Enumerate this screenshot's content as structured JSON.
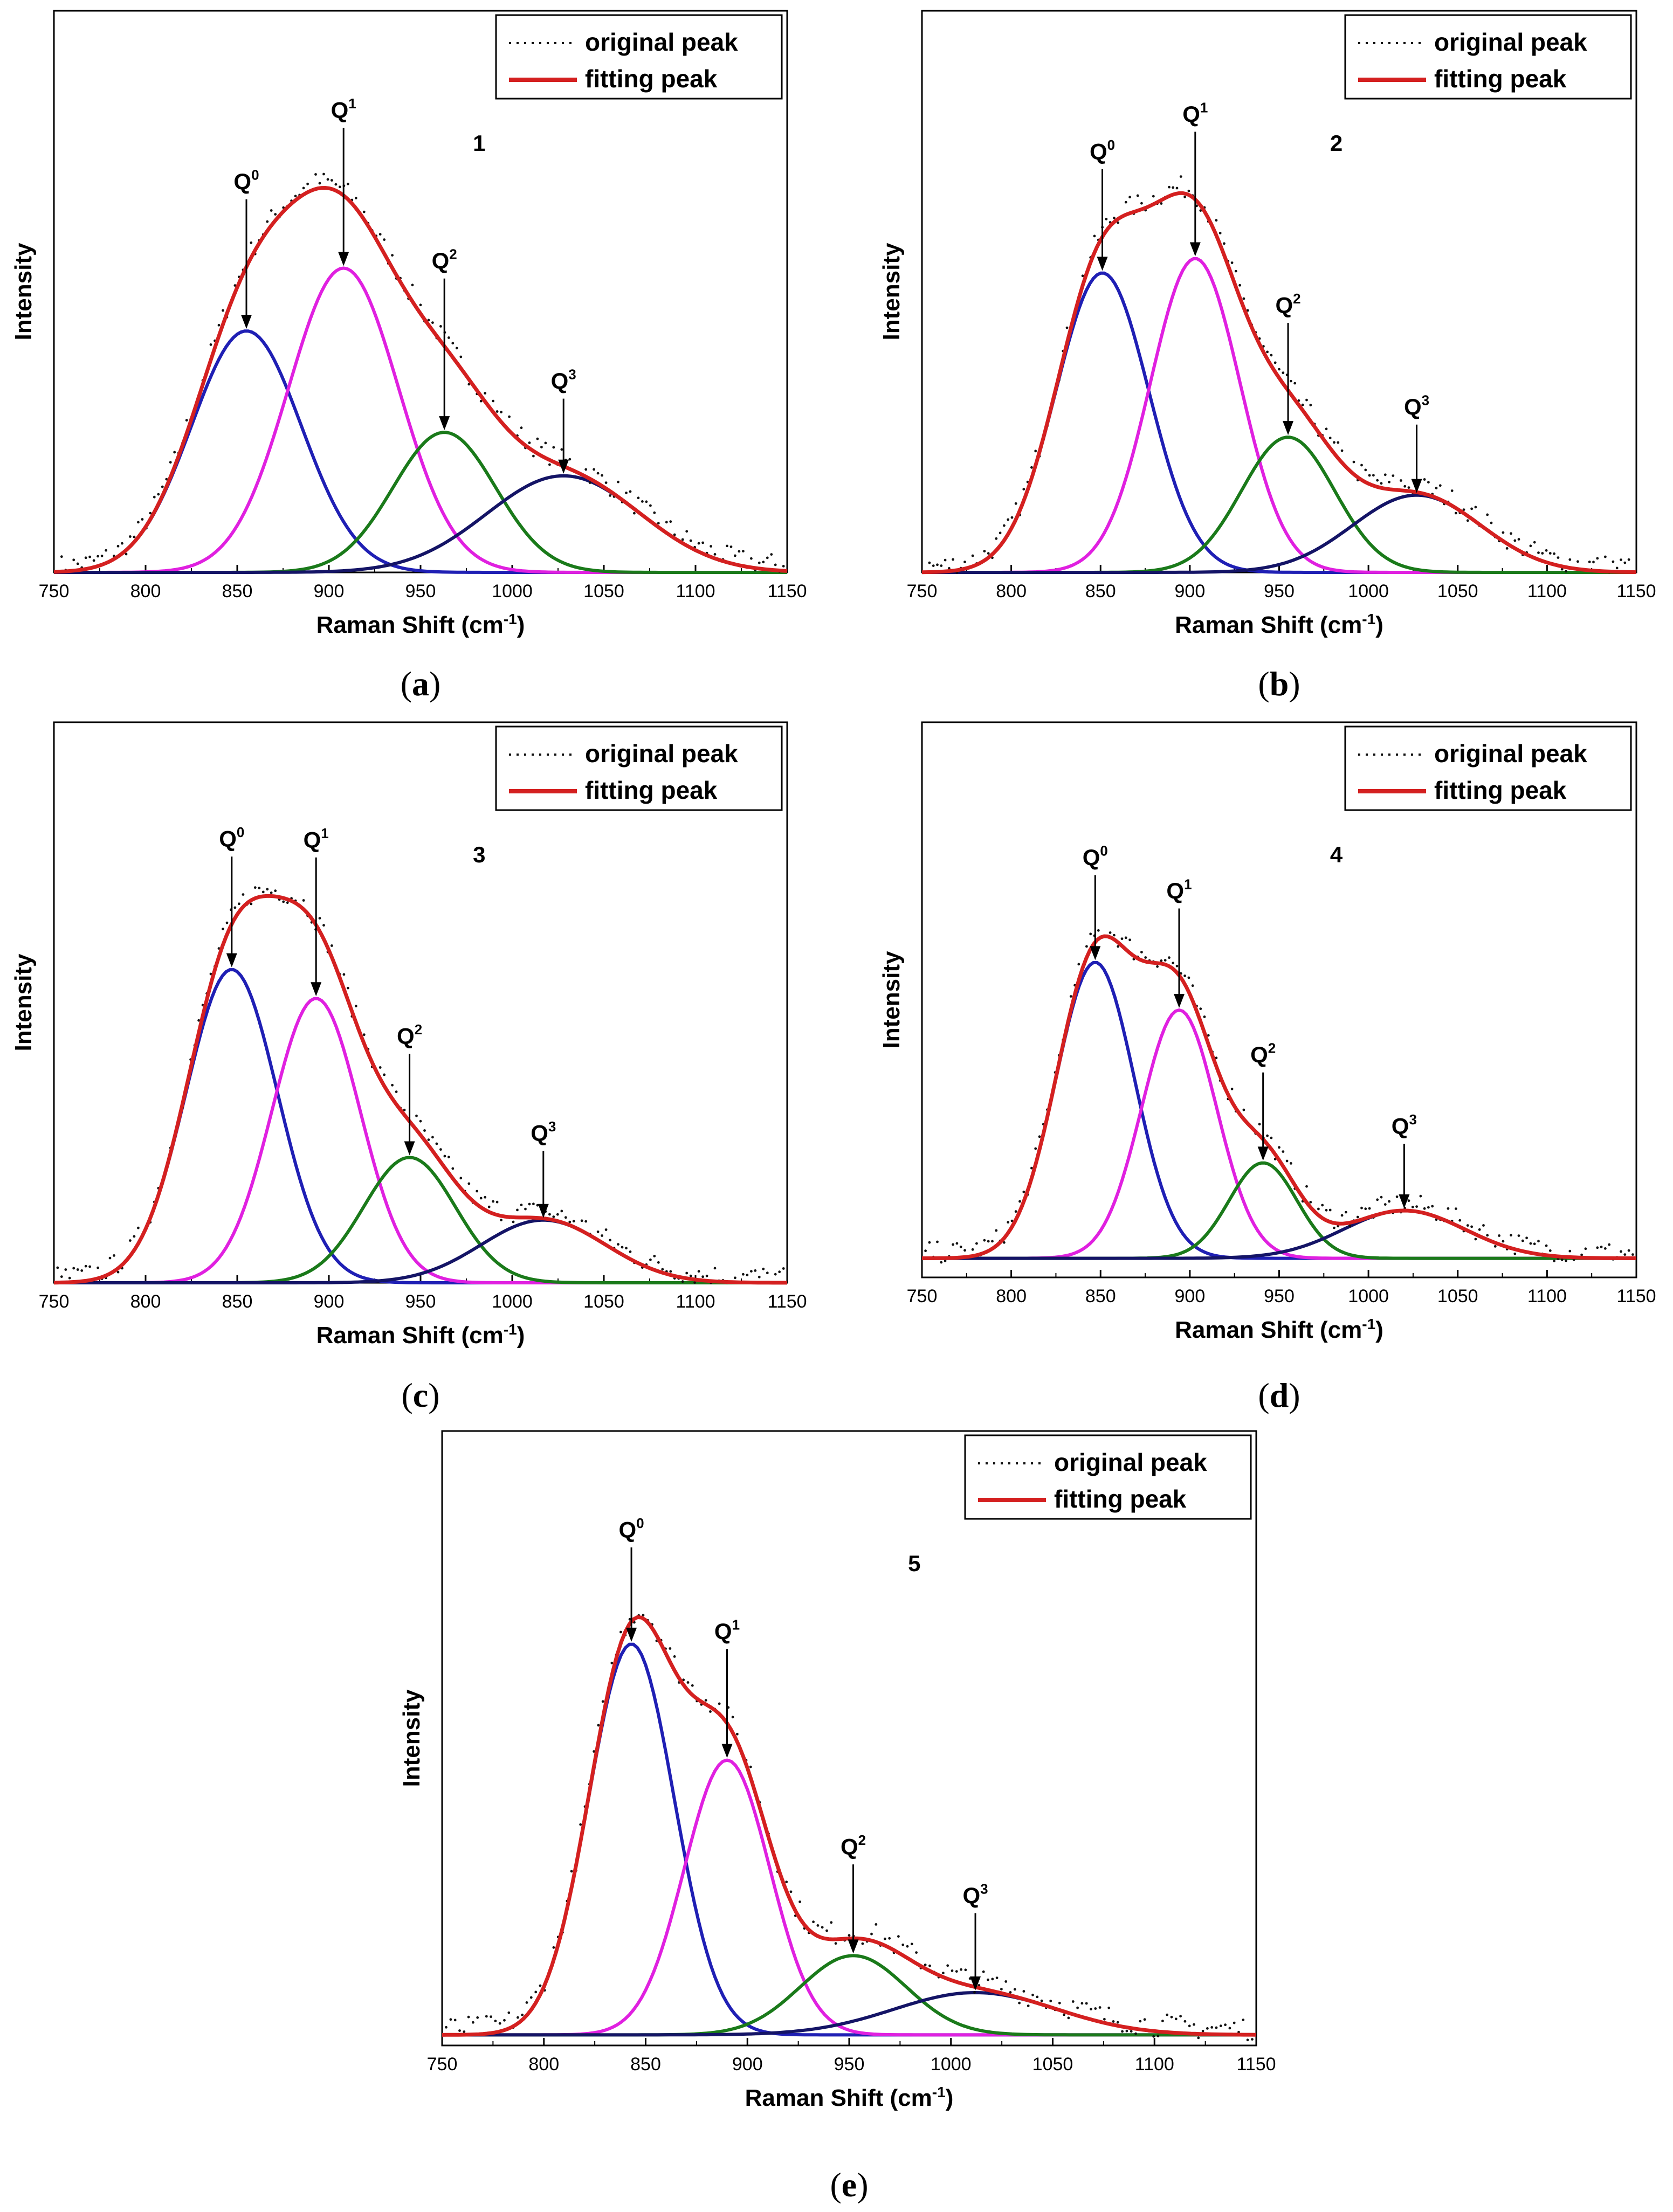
{
  "chart_data": [
    {
      "type": "line",
      "panel": "(a)",
      "caption_letter": "a",
      "sample": "1",
      "xlabel": "Raman Shift (cm",
      "xlabel_sup": "-1",
      "ylabel": "Intensity",
      "xlim": [
        750,
        1150
      ],
      "xticks": [
        750,
        800,
        850,
        900,
        950,
        1000,
        1050,
        1100,
        1150
      ],
      "ylim": [
        0,
        1
      ],
      "legend": [
        "original peak",
        "fitting peak"
      ],
      "legend_position": "top-right",
      "baseline": 0,
      "components": [
        {
          "name": "Q",
          "sup": "0",
          "center": 855,
          "height": 0.5,
          "sigma": 30,
          "color": "#1f1fb4"
        },
        {
          "name": "Q",
          "sup": "1",
          "center": 908,
          "height": 0.63,
          "sigma": 30,
          "color": "#e020e0"
        },
        {
          "name": "Q",
          "sup": "2",
          "center": 963,
          "height": 0.29,
          "sigma": 28,
          "color": "#1a7a1a"
        },
        {
          "name": "Q",
          "sup": "3",
          "center": 1028,
          "height": 0.2,
          "sigma": 42,
          "color": "#141466"
        }
      ]
    },
    {
      "type": "line",
      "panel": "(b)",
      "caption_letter": "b",
      "sample": "2",
      "xlabel": "Raman Shift (cm",
      "xlabel_sup": "-1",
      "ylabel": "Intensity",
      "xlim": [
        750,
        1150
      ],
      "xticks": [
        750,
        800,
        850,
        900,
        950,
        1000,
        1050,
        1100,
        1150
      ],
      "ylim": [
        0,
        1
      ],
      "legend": [
        "original peak",
        "fitting peak"
      ],
      "legend_position": "top-right",
      "baseline": 0,
      "components": [
        {
          "name": "Q",
          "sup": "0",
          "center": 851,
          "height": 0.62,
          "sigma": 26,
          "color": "#1f1fb4"
        },
        {
          "name": "Q",
          "sup": "1",
          "center": 903,
          "height": 0.65,
          "sigma": 25,
          "color": "#e020e0"
        },
        {
          "name": "Q",
          "sup": "2",
          "center": 955,
          "height": 0.28,
          "sigma": 26,
          "color": "#1a7a1a"
        },
        {
          "name": "Q",
          "sup": "3",
          "center": 1027,
          "height": 0.16,
          "sigma": 36,
          "color": "#141466"
        }
      ]
    },
    {
      "type": "line",
      "panel": "(c)",
      "caption_letter": "c",
      "sample": "3",
      "xlabel": "Raman Shift (cm",
      "xlabel_sup": "-1",
      "ylabel": "Intensity",
      "xlim": [
        750,
        1150
      ],
      "xticks": [
        750,
        800,
        850,
        900,
        950,
        1000,
        1050,
        1100,
        1150
      ],
      "ylim": [
        0,
        1
      ],
      "legend": [
        "original peak",
        "fitting peak"
      ],
      "legend_position": "top-right",
      "baseline": 0,
      "components": [
        {
          "name": "Q",
          "sup": "0",
          "center": 847,
          "height": 0.65,
          "sigma": 25,
          "color": "#1f1fb4"
        },
        {
          "name": "Q",
          "sup": "1",
          "center": 893,
          "height": 0.59,
          "sigma": 24,
          "color": "#e020e0"
        },
        {
          "name": "Q",
          "sup": "2",
          "center": 944,
          "height": 0.26,
          "sigma": 25,
          "color": "#1a7a1a"
        },
        {
          "name": "Q",
          "sup": "3",
          "center": 1017,
          "height": 0.13,
          "sigma": 34,
          "color": "#141466"
        }
      ]
    },
    {
      "type": "line",
      "panel": "(d)",
      "caption_letter": "d",
      "sample": "4",
      "xlabel": "Raman Shift (cm",
      "xlabel_sup": "-1",
      "ylabel": "Intensity",
      "xlim": [
        750,
        1150
      ],
      "xticks": [
        750,
        800,
        850,
        900,
        950,
        1000,
        1050,
        1100,
        1150
      ],
      "ylim": [
        0,
        1
      ],
      "legend": [
        "original peak",
        "fitting peak"
      ],
      "legend_position": "top-right",
      "baseline": 0.04,
      "components": [
        {
          "name": "Q",
          "sup": "0",
          "center": 847,
          "height": 0.62,
          "sigma": 22,
          "color": "#1f1fb4"
        },
        {
          "name": "Q",
          "sup": "1",
          "center": 894,
          "height": 0.52,
          "sigma": 21,
          "color": "#e020e0"
        },
        {
          "name": "Q",
          "sup": "2",
          "center": 941,
          "height": 0.2,
          "sigma": 19,
          "color": "#1a7a1a"
        },
        {
          "name": "Q",
          "sup": "3",
          "center": 1020,
          "height": 0.1,
          "sigma": 34,
          "color": "#141466"
        }
      ]
    },
    {
      "type": "line",
      "panel": "(e)",
      "caption_letter": "e",
      "sample": "5",
      "xlabel": "Raman Shift (cm",
      "xlabel_sup": "-1",
      "ylabel": "Intensity",
      "xlim": [
        750,
        1150
      ],
      "xticks": [
        750,
        800,
        850,
        900,
        950,
        1000,
        1050,
        1100,
        1150
      ],
      "ylim": [
        0,
        1
      ],
      "legend": [
        "original peak",
        "fitting peak"
      ],
      "legend_position": "top-right",
      "baseline": 0.02,
      "components": [
        {
          "name": "Q",
          "sup": "0",
          "center": 843,
          "height": 0.74,
          "sigma": 21,
          "color": "#1f1fb4"
        },
        {
          "name": "Q",
          "sup": "1",
          "center": 890,
          "height": 0.52,
          "sigma": 21,
          "color": "#e020e0"
        },
        {
          "name": "Q",
          "sup": "2",
          "center": 952,
          "height": 0.15,
          "sigma": 26,
          "color": "#1a7a1a"
        },
        {
          "name": "Q",
          "sup": "3",
          "center": 1012,
          "height": 0.08,
          "sigma": 40,
          "color": "#141466"
        }
      ]
    }
  ],
  "colors": {
    "fit": "#d42020",
    "original": "#111111"
  }
}
